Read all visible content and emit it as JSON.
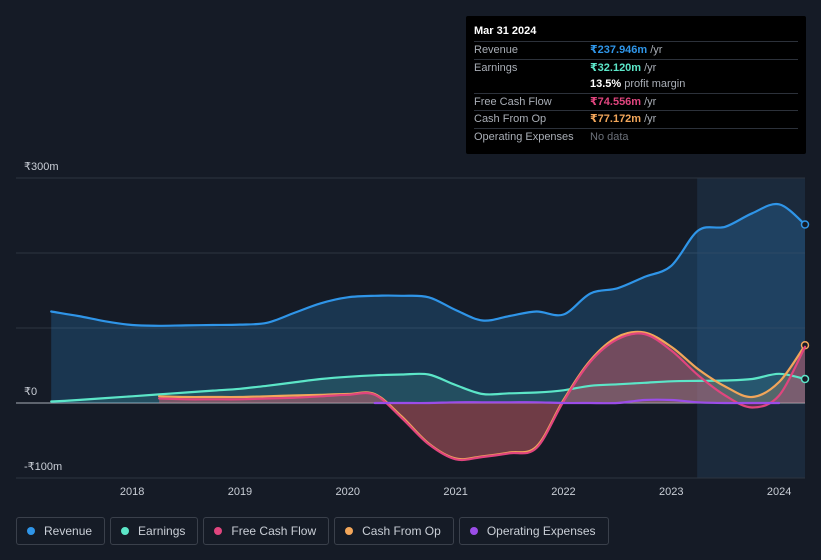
{
  "tooltip": {
    "date": "Mar 31 2024",
    "rows": [
      {
        "label": "Revenue",
        "value": "₹237.946m",
        "unit": "/yr",
        "color": "#2f95e8"
      },
      {
        "label": "Earnings",
        "value": "₹32.120m",
        "unit": "/yr",
        "color": "#5ce6c8"
      },
      {
        "label": "",
        "value": "13.5%",
        "unit": "profit margin",
        "color": "#ffffff"
      },
      {
        "label": "Free Cash Flow",
        "value": "₹74.556m",
        "unit": "/yr",
        "color": "#e0457e"
      },
      {
        "label": "Cash From Op",
        "value": "₹77.172m",
        "unit": "/yr",
        "color": "#f2a65a"
      },
      {
        "label": "Operating Expenses",
        "value": "No data",
        "unit": "",
        "color": "#6c717a"
      }
    ]
  },
  "legend": [
    {
      "label": "Revenue",
      "color": "#2f95e8"
    },
    {
      "label": "Earnings",
      "color": "#5ce6c8"
    },
    {
      "label": "Free Cash Flow",
      "color": "#e0457e"
    },
    {
      "label": "Cash From Op",
      "color": "#f2a65a"
    },
    {
      "label": "Operating Expenses",
      "color": "#9b4de8"
    }
  ],
  "chart_data": {
    "type": "area",
    "y_unit": "₹m",
    "ylim": [
      -100,
      300
    ],
    "y_tick_labels": [
      {
        "value": 300,
        "label": "₹300m"
      },
      {
        "value": 0,
        "label": "₹0"
      },
      {
        "value": -100,
        "label": "-₹100m"
      }
    ],
    "x_range": [
      2017.22,
      2024.24
    ],
    "x_ticks": [
      2018,
      2019,
      2020,
      2021,
      2022,
      2023,
      2024
    ],
    "highlight_from": 2023.24,
    "series": [
      {
        "name": "Revenue",
        "color": "#2f95e8",
        "x": [
          2017.25,
          2017.5,
          2017.75,
          2018.0,
          2018.25,
          2018.5,
          2018.75,
          2019.0,
          2019.25,
          2019.5,
          2019.75,
          2020.0,
          2020.25,
          2020.5,
          2020.75,
          2021.0,
          2021.25,
          2021.5,
          2021.75,
          2022.0,
          2022.25,
          2022.5,
          2022.75,
          2023.0,
          2023.25,
          2023.5,
          2023.75,
          2024.0,
          2024.24
        ],
        "y": [
          122,
          116,
          109,
          104,
          103,
          103.5,
          104,
          104.5,
          107,
          120,
          133,
          141,
          143,
          143,
          141,
          124,
          110,
          116,
          122,
          118,
          146,
          153,
          168,
          183,
          230,
          235,
          253,
          265,
          238
        ]
      },
      {
        "name": "Earnings",
        "color": "#5ce6c8",
        "x": [
          2017.25,
          2017.5,
          2017.75,
          2018.0,
          2018.25,
          2018.5,
          2018.75,
          2019.0,
          2019.25,
          2019.5,
          2019.75,
          2020.0,
          2020.25,
          2020.5,
          2020.75,
          2021.0,
          2021.25,
          2021.5,
          2021.75,
          2022.0,
          2022.25,
          2022.5,
          2022.75,
          2023.0,
          2023.25,
          2023.5,
          2023.75,
          2024.0,
          2024.24
        ],
        "y": [
          2,
          4,
          6.5,
          9,
          11.5,
          14,
          16.5,
          19,
          23,
          27.5,
          32,
          35,
          37,
          38,
          38,
          24,
          12,
          13,
          14,
          17,
          23,
          25,
          27,
          29,
          29.5,
          30,
          32,
          39,
          32
        ]
      },
      {
        "name": "Free Cash Flow",
        "color": "#e0457e",
        "x": [
          2018.25,
          2018.5,
          2018.75,
          2019.0,
          2019.25,
          2019.5,
          2019.75,
          2020.0,
          2020.25,
          2020.5,
          2020.75,
          2021.0,
          2021.25,
          2021.5,
          2021.75,
          2022.0,
          2022.25,
          2022.5,
          2022.75,
          2023.0,
          2023.25,
          2023.5,
          2023.75,
          2024.0,
          2024.24
        ],
        "y": [
          6,
          5,
          5,
          5,
          6,
          7,
          9,
          11,
          11,
          -20,
          -55,
          -75,
          -72,
          -67,
          -60,
          2,
          55,
          85,
          92,
          70,
          37,
          10,
          -6,
          10,
          75
        ]
      },
      {
        "name": "Cash From Op",
        "color": "#f2a65a",
        "x": [
          2018.25,
          2018.5,
          2018.75,
          2019.0,
          2019.25,
          2019.5,
          2019.75,
          2020.0,
          2020.25,
          2020.5,
          2020.75,
          2021.0,
          2021.25,
          2021.5,
          2021.75,
          2022.0,
          2022.25,
          2022.5,
          2022.75,
          2023.0,
          2023.25,
          2023.5,
          2023.75,
          2024.0,
          2024.24
        ],
        "y": [
          9,
          8,
          8,
          8,
          9,
          10,
          11,
          12,
          12,
          -18,
          -54,
          -74,
          -71,
          -66,
          -58,
          4,
          57,
          88,
          94,
          75,
          45,
          22,
          8,
          28,
          77
        ]
      },
      {
        "name": "Operating Expenses",
        "color": "#9b4de8",
        "x": [
          2020.25,
          2020.5,
          2020.75,
          2021.0,
          2021.25,
          2021.5,
          2021.75,
          2022.0,
          2022.25,
          2022.5,
          2022.75,
          2023.0,
          2023.25,
          2023.5,
          2023.75,
          2024.0
        ],
        "y": [
          0,
          0,
          0,
          1,
          1,
          1,
          1,
          0,
          0,
          0,
          4,
          4,
          1,
          0,
          0,
          0
        ]
      }
    ]
  }
}
